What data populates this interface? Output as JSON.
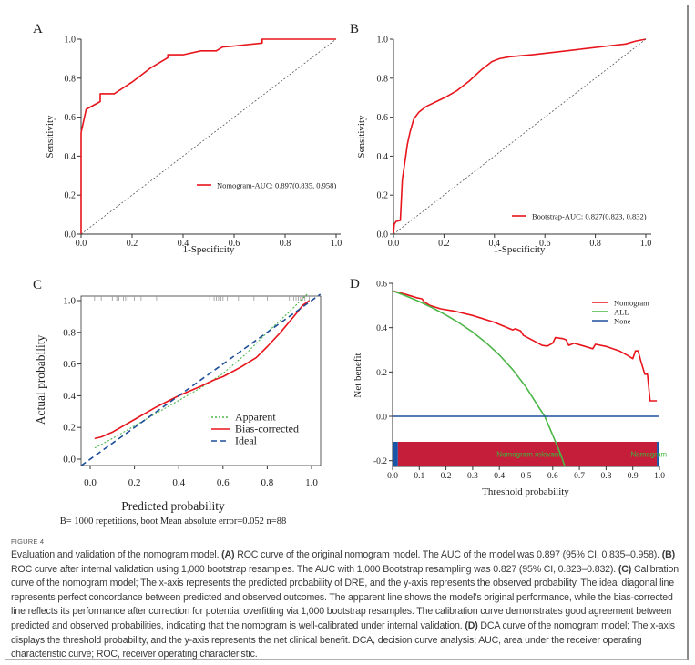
{
  "figure": {
    "label": "FIGURE 4",
    "caption": [
      {
        "text": "Evaluation and validation of the nomogram model. ",
        "bold": false
      },
      {
        "text": "(A)",
        "bold": true
      },
      {
        "text": " ROC curve of the original nomogram model. The AUC of the model was 0.897 (95% CI, 0.835–0.958). ",
        "bold": false
      },
      {
        "text": "(B)",
        "bold": true
      },
      {
        "text": " ROC curve after internal validation using 1,000 bootstrap resamples. The AUC with 1,000 Bootstrap resampling was 0.827 (95% CI, 0.823–0.832). ",
        "bold": false
      },
      {
        "text": "(C)",
        "bold": true
      },
      {
        "text": " Calibration curve of the nomogram model; The x-axis represents the predicted probability of DRE, and the y-axis represents the observed probability. The ideal diagonal line represents perfect concordance between predicted and observed outcomes. The apparent line shows the model’s original performance, while the bias-corrected line reflects its performance after correction for potential overfitting via 1,000 bootstrap resamples. The calibration curve demonstrates good agreement between predicted and observed probabilities, indicating that the nomogram is well-calibrated under internal validation. ",
        "bold": false
      },
      {
        "text": "(D)",
        "bold": true
      },
      {
        "text": " DCA curve of the nomogram model; The x-axis displays the threshold probability, and the y-axis represents the net clinical benefit. DCA, decision curve analysis; AUC, area under the receiver operating characteristic curve; ROC, receiver operating characteristic.",
        "bold": false
      }
    ]
  },
  "colors": {
    "red": "#e8141c",
    "green": "#4cb648",
    "blue": "#1f4e9a",
    "crimson": "#c41e3a",
    "bar_blue": "#1a55a8",
    "rel_text": "#3db83a",
    "axis": "#333333",
    "diag": "#555555"
  },
  "chart_data": [
    {
      "panel": "A",
      "type": "line",
      "title": "",
      "xlabel": "1-Specificity",
      "ylabel": "Sensitivity",
      "xlim": [
        0,
        1
      ],
      "ylim": [
        0,
        1
      ],
      "xticks": [
        "0.0",
        "0.2",
        "0.4",
        "0.6",
        "0.8",
        "1.0"
      ],
      "yticks": [
        "0.0",
        "0.2",
        "0.4",
        "0.6",
        "0.8",
        "1.0"
      ],
      "legend_position": "center-right",
      "series": [
        {
          "name": "Nomogram-AUC: 0.897(0.835, 0.958)",
          "style": "solid",
          "color": "red",
          "x": [
            0,
            0,
            0,
            0.02,
            0.075,
            0.075,
            0.13,
            0.2,
            0.27,
            0.34,
            0.34,
            0.4,
            0.47,
            0.53,
            0.555,
            0.6,
            0.71,
            0.71,
            0.8,
            1.0
          ],
          "y": [
            0,
            0.52,
            0.52,
            0.64,
            0.68,
            0.72,
            0.72,
            0.78,
            0.85,
            0.905,
            0.92,
            0.92,
            0.94,
            0.94,
            0.96,
            0.965,
            0.98,
            1.0,
            1.0,
            1.0
          ]
        },
        {
          "name": "reference",
          "style": "dotted",
          "color": "diag",
          "x": [
            0,
            1
          ],
          "y": [
            0,
            1
          ]
        }
      ]
    },
    {
      "panel": "B",
      "type": "line",
      "title": "",
      "xlabel": "1-Specificity",
      "ylabel": "Sensitivity",
      "xlim": [
        0,
        1
      ],
      "ylim": [
        0,
        1
      ],
      "xticks": [
        "0.0",
        "0.2",
        "0.4",
        "0.6",
        "0.8",
        "1.0"
      ],
      "yticks": [
        "0.0",
        "0.2",
        "0.4",
        "0.6",
        "0.8",
        "1.0"
      ],
      "legend_position": "bottom-right",
      "series": [
        {
          "name": "Bootstrap-AUC: 0.827(0.823, 0.832)",
          "style": "solid",
          "color": "red",
          "x": [
            0,
            0.003,
            0.01,
            0.025,
            0.027,
            0.035,
            0.045,
            0.055,
            0.065,
            0.08,
            0.1,
            0.13,
            0.17,
            0.21,
            0.25,
            0.3,
            0.35,
            0.39,
            0.42,
            0.46,
            0.55,
            0.65,
            0.75,
            0.85,
            0.92,
            0.96,
            1.0
          ],
          "y": [
            0,
            0.05,
            0.065,
            0.07,
            0.07,
            0.28,
            0.37,
            0.46,
            0.52,
            0.59,
            0.625,
            0.655,
            0.68,
            0.705,
            0.735,
            0.785,
            0.845,
            0.885,
            0.9,
            0.91,
            0.92,
            0.935,
            0.95,
            0.965,
            0.975,
            0.99,
            1.0
          ]
        },
        {
          "name": "reference",
          "style": "dotted",
          "color": "diag",
          "x": [
            0,
            1
          ],
          "y": [
            0,
            1
          ]
        }
      ]
    },
    {
      "panel": "C",
      "type": "line",
      "title": "",
      "xlabel": "Predicted probability",
      "ylabel": "Actual probability",
      "subtitle": "B= 1000 repetitions, boot Mean absolute error=0.052 n=88",
      "xlim": [
        -0.04,
        1.04
      ],
      "ylim": [
        -0.04,
        1.04
      ],
      "xticks": [
        "0.0",
        "0.2",
        "0.4",
        "0.6",
        "0.8",
        "1.0"
      ],
      "yticks": [
        "0.0",
        "0.2",
        "0.4",
        "0.6",
        "0.8",
        "1.0"
      ],
      "legend_position": "bottom-right",
      "rug_x": [
        0.02,
        0.05,
        0.1,
        0.12,
        0.13,
        0.15,
        0.16,
        0.17,
        0.2,
        0.23,
        0.3,
        0.54,
        0.56,
        0.57,
        0.58,
        0.59,
        0.6,
        0.62,
        0.67,
        0.74,
        0.8,
        0.9,
        0.92,
        0.93,
        0.94,
        0.95,
        0.96,
        0.97,
        0.99
      ],
      "series": [
        {
          "name": "Apparent",
          "style": "dotted",
          "color": "green",
          "x": [
            0.02,
            0.1,
            0.2,
            0.3,
            0.4,
            0.5,
            0.6,
            0.7,
            0.8,
            0.9,
            0.98
          ],
          "y": [
            0.07,
            0.13,
            0.21,
            0.29,
            0.37,
            0.45,
            0.54,
            0.66,
            0.8,
            0.93,
            1.04
          ]
        },
        {
          "name": "Bias-corrected",
          "style": "solid",
          "color": "red",
          "x": [
            0.02,
            0.05,
            0.1,
            0.2,
            0.3,
            0.4,
            0.5,
            0.56,
            0.6,
            0.68,
            0.75,
            0.8,
            0.86,
            0.92,
            0.96,
            0.99
          ],
          "y": [
            0.13,
            0.14,
            0.17,
            0.25,
            0.33,
            0.4,
            0.46,
            0.5,
            0.52,
            0.58,
            0.64,
            0.71,
            0.8,
            0.9,
            0.97,
            1.0
          ]
        },
        {
          "name": "Ideal",
          "style": "dashed",
          "color": "blue",
          "x": [
            -0.04,
            1.04
          ],
          "y": [
            -0.04,
            1.04
          ]
        }
      ]
    },
    {
      "panel": "D",
      "type": "line",
      "title": "",
      "xlabel": "Threshold probability",
      "ylabel": "Net benefit",
      "xlim": [
        0,
        1
      ],
      "ylim": [
        -0.27,
        0.6
      ],
      "xticks": [
        "0.0",
        "0.1",
        "0.2",
        "0.3",
        "0.4",
        "0.5",
        "0.6",
        "0.7",
        "0.8",
        "0.9",
        "1.0"
      ],
      "yticks": [
        "-0.2",
        "0.0",
        "0.2",
        "0.4",
        "0.6"
      ],
      "legend_position": "top-right",
      "series": [
        {
          "name": "Nomogram",
          "style": "solid",
          "color": "red",
          "x": [
            0,
            0.05,
            0.09,
            0.11,
            0.12,
            0.14,
            0.18,
            0.23,
            0.3,
            0.38,
            0.45,
            0.46,
            0.48,
            0.49,
            0.53,
            0.56,
            0.58,
            0.6,
            0.61,
            0.64,
            0.65,
            0.66,
            0.68,
            0.75,
            0.76,
            0.8,
            0.85,
            0.88,
            0.9,
            0.91,
            0.92,
            0.93,
            0.945,
            0.955,
            0.965,
            0.99
          ],
          "y": [
            0.566,
            0.55,
            0.535,
            0.53,
            0.515,
            0.5,
            0.485,
            0.475,
            0.455,
            0.425,
            0.39,
            0.395,
            0.385,
            0.365,
            0.34,
            0.32,
            0.317,
            0.33,
            0.355,
            0.35,
            0.345,
            0.32,
            0.33,
            0.305,
            0.325,
            0.315,
            0.295,
            0.275,
            0.26,
            0.295,
            0.295,
            0.25,
            0.19,
            0.19,
            0.07,
            0.07
          ]
        },
        {
          "name": "ALL",
          "style": "solid",
          "color": "green",
          "x": [
            0,
            0.05,
            0.1,
            0.15,
            0.2,
            0.25,
            0.3,
            0.35,
            0.4,
            0.45,
            0.5,
            0.55,
            0.57,
            0.6,
            0.63,
            0.66
          ],
          "y": [
            0.566,
            0.543,
            0.518,
            0.489,
            0.457,
            0.421,
            0.38,
            0.332,
            0.277,
            0.211,
            0.132,
            0.036,
            0.0,
            -0.085,
            -0.172,
            -0.277
          ]
        },
        {
          "name": "None",
          "style": "solid",
          "color": "blue",
          "x": [
            0,
            1
          ],
          "y": [
            0,
            0
          ]
        }
      ],
      "relevance_bar": {
        "y_range": [
          -0.225,
          -0.115
        ],
        "segments": [
          {
            "from": 0.0,
            "to": 0.02,
            "color": "bar_blue"
          },
          {
            "from": 0.02,
            "to": 0.99,
            "color": "crimson"
          },
          {
            "from": 0.99,
            "to": 1.0,
            "color": "bar_blue"
          }
        ],
        "labels": [
          {
            "text": "Nomogram relevant",
            "x": 0.51
          },
          {
            "text": "Nomogram",
            "x": 0.96
          }
        ]
      }
    }
  ]
}
